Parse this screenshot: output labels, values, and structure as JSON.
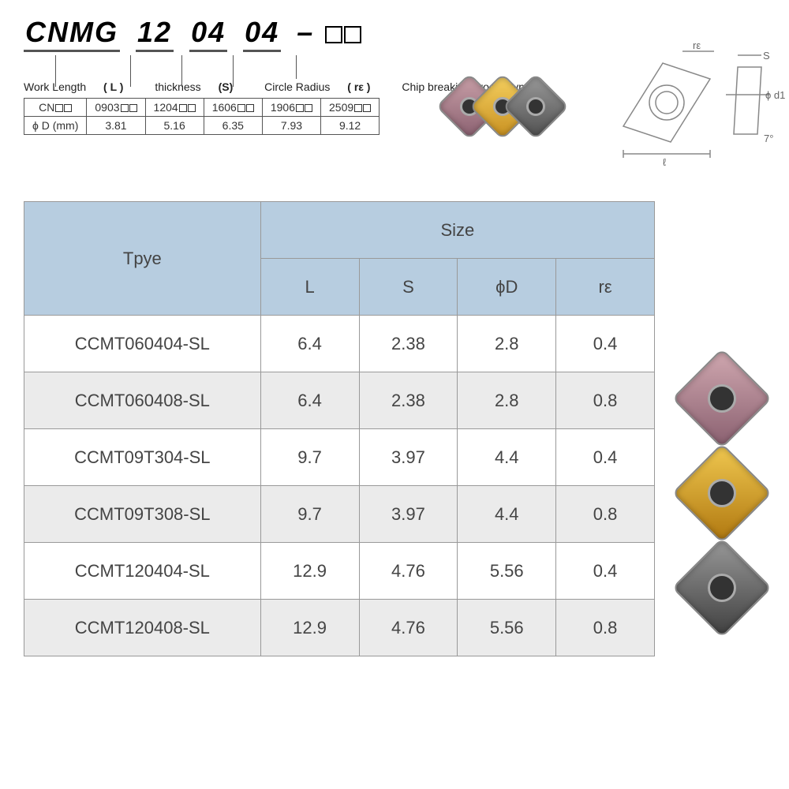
{
  "code": {
    "p0": "CNMG",
    "p1": "12",
    "p2": "04",
    "p3": "04",
    "dash": "–"
  },
  "legend": {
    "work": "Work Length",
    "work_sym": "( L )",
    "thick": "thickness",
    "thick_sym": "(S)",
    "radius": "Circle Radius",
    "radius_sym": "( rε )",
    "chip": "Chip breaking groove type"
  },
  "cnTable": {
    "hdr": "CN",
    "cols": [
      "0903",
      "1204",
      "1606",
      "1906",
      "2509"
    ],
    "rowLabel": "ϕ D (mm)",
    "vals": [
      "3.81",
      "5.16",
      "6.35",
      "7.93",
      "9.12"
    ]
  },
  "techLabels": {
    "re": "rε",
    "s": "S",
    "d1": "ϕ d1",
    "l": "ℓ",
    "ang": "7°"
  },
  "mainHeaders": {
    "type": "Tpye",
    "size": "Size",
    "L": "L",
    "S": "S",
    "D": "ϕD",
    "r": "rε"
  },
  "rows": [
    {
      "type": "CCMT060404-SL",
      "L": "6.4",
      "S": "2.38",
      "D": "2.8",
      "r": "0.4"
    },
    {
      "type": "CCMT060408-SL",
      "L": "6.4",
      "S": "2.38",
      "D": "2.8",
      "r": "0.8"
    },
    {
      "type": "CCMT09T304-SL",
      "L": "9.7",
      "S": "3.97",
      "D": "4.4",
      "r": "0.4"
    },
    {
      "type": "CCMT09T308-SL",
      "L": "9.7",
      "S": "3.97",
      "D": "4.4",
      "r": "0.8"
    },
    {
      "type": "CCMT120404-SL",
      "L": "12.9",
      "S": "4.76",
      "D": "5.56",
      "r": "0.4"
    },
    {
      "type": "CCMT120408-SL",
      "L": "12.9",
      "S": "4.76",
      "D": "5.56",
      "r": "0.8"
    }
  ],
  "colors": {
    "headerBg": "#b7cde0",
    "altRow": "#ebebeb",
    "border": "#999999",
    "insert1": "#c9a0a8",
    "insert2": "#e8b850",
    "insert3": "#808080"
  }
}
